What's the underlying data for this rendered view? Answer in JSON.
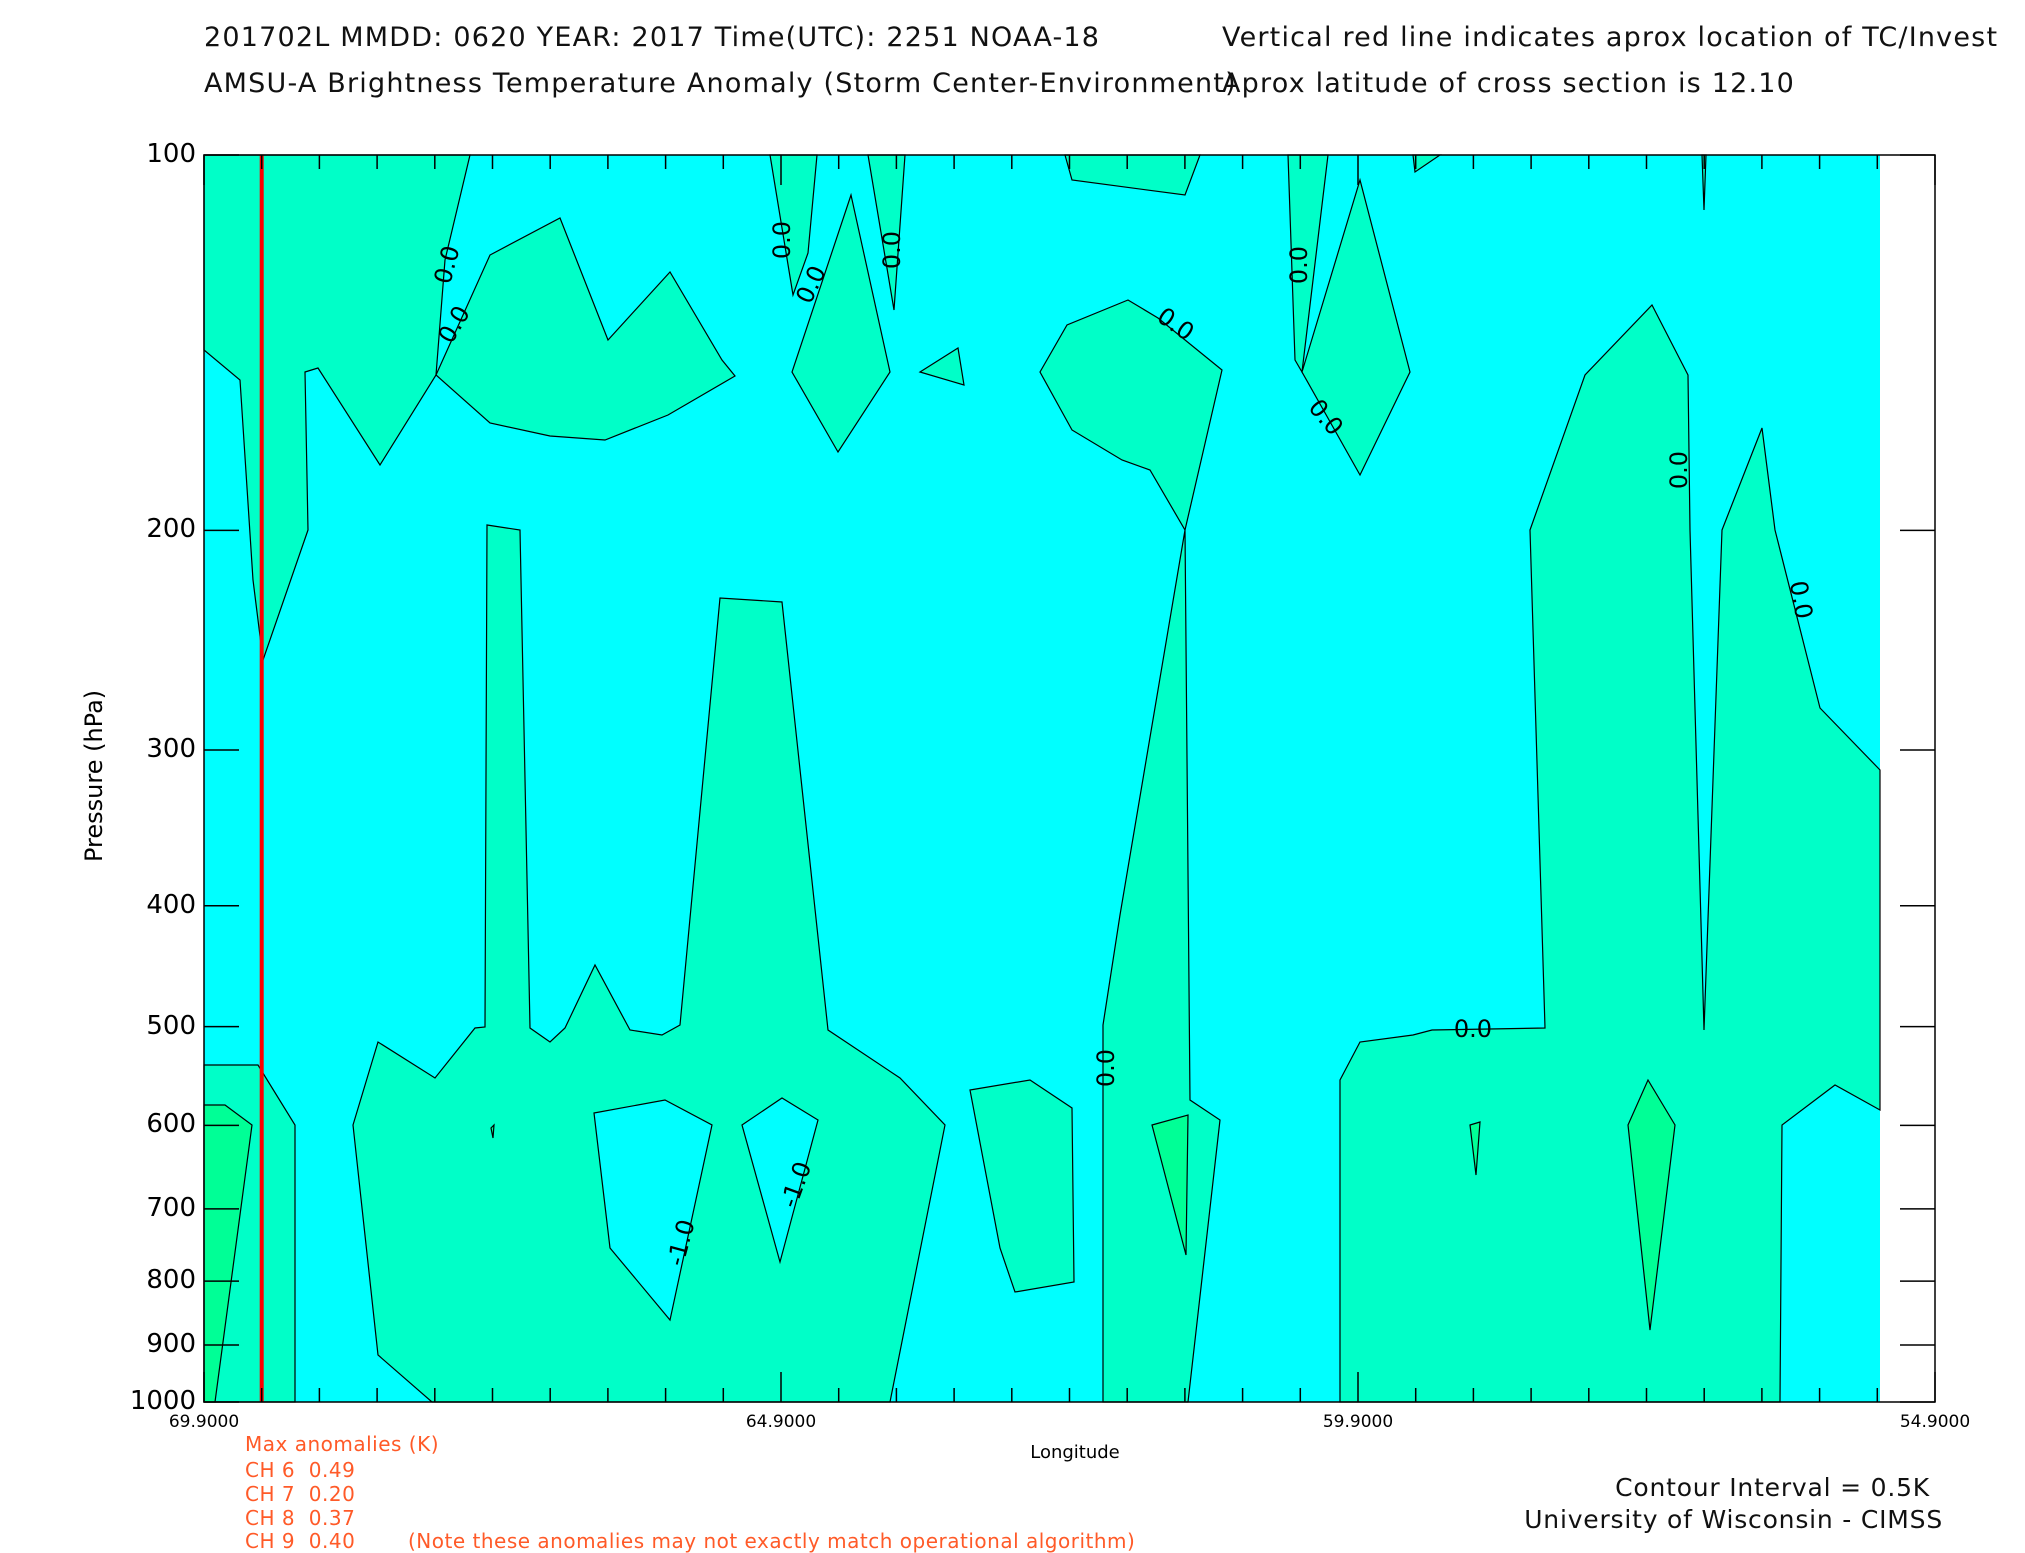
{
  "header": {
    "line1_left": "201702L  MMDD: 0620 YEAR: 2017 Time(UTC): 2251 NOAA-18",
    "line1_right": "Vertical red line indicates aprox location of TC/Invest",
    "line2_left": "AMSU-A Brightness Temperature Anomaly (Storm Center-Environment)",
    "line2_right": "Aprox latitude of cross section is 12.10"
  },
  "chart_data": {
    "type": "contour",
    "xlabel": "Longitude",
    "ylabel": "Pressure (hPa)",
    "x_ticks": [
      "69.9000",
      "64.9000",
      "59.9000",
      "54.9000"
    ],
    "y_ticks": [
      "100",
      "200",
      "300",
      "400",
      "500",
      "600",
      "700",
      "800",
      "900",
      "1000"
    ],
    "xlim": [
      69.9,
      54.9
    ],
    "ylim": [
      1000,
      100
    ],
    "y_scale": "log",
    "tc_longitude": 69.4,
    "contour_labels": [
      "0.0",
      "0.0",
      "0.0",
      "0.0",
      "0.0",
      "0.0",
      "0.0",
      "0.0",
      "0.0",
      "0.0",
      "0.0",
      "0.0",
      "-1.0",
      "-1.0"
    ],
    "colors": {
      "below_minus_0_5": "#00ffff",
      "minus_0_5_to_0": "#00ffff",
      "0_to_0_5": "#00ffc8",
      "above_0_5": "#00ff96",
      "tc_line": "#ff0000"
    }
  },
  "max_anomalies": {
    "title": "Max anomalies (K)",
    "channels": [
      "CH 6  0.49",
      "CH 7  0.20",
      "CH 8  0.37",
      "CH 9  0.40"
    ],
    "note": "(Note these anomalies may not exactly match operational algorithm)"
  },
  "footer": {
    "contour_interval": "Contour Interval = 0.5K",
    "credit": "University of Wisconsin - CIMSS"
  }
}
